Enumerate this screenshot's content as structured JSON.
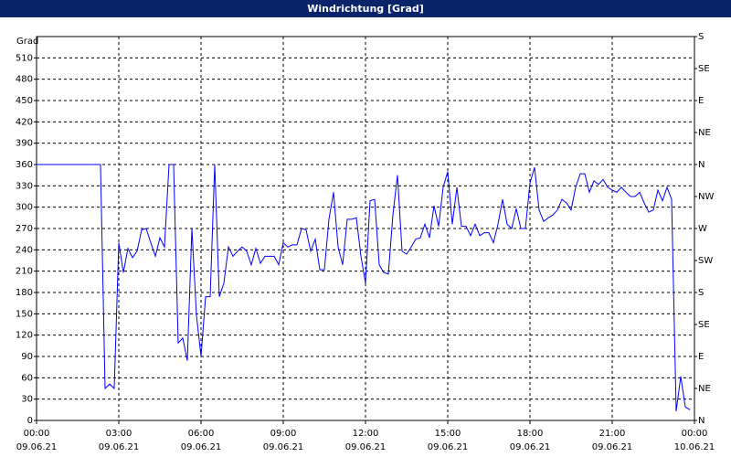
{
  "chart_data": {
    "type": "line",
    "title": "Windrichtung [Grad]",
    "y_label": "Grad",
    "color": "#0000ff",
    "grid": true,
    "xlim": [
      0,
      1440
    ],
    "xticks": [
      {
        "value": 0,
        "label": "00:00"
      },
      {
        "value": 180,
        "label": "03:00"
      },
      {
        "value": 360,
        "label": "06:00"
      },
      {
        "value": 540,
        "label": "09:00"
      },
      {
        "value": 720,
        "label": "12:00"
      },
      {
        "value": 900,
        "label": "15:00"
      },
      {
        "value": 1080,
        "label": "18:00"
      },
      {
        "value": 1260,
        "label": "21:00"
      },
      {
        "value": 1440,
        "label": "00:00"
      }
    ],
    "xtick_dates": [
      "09.06.21",
      "09.06.21",
      "09.06.21",
      "09.06.21",
      "09.06.21",
      "09.06.21",
      "09.06.21",
      "09.06.21",
      "10.06.21"
    ],
    "ylim": [
      0,
      540
    ],
    "yticks": [
      0,
      30,
      60,
      90,
      120,
      150,
      180,
      210,
      240,
      270,
      300,
      330,
      360,
      390,
      420,
      450,
      480,
      510
    ],
    "y2lim": [
      0,
      540
    ],
    "y2ticks": [
      {
        "value": 0,
        "label": "N"
      },
      {
        "value": 45,
        "label": "NE"
      },
      {
        "value": 90,
        "label": "E"
      },
      {
        "value": 135,
        "label": "SE"
      },
      {
        "value": 180,
        "label": "S"
      },
      {
        "value": 225,
        "label": "SW"
      },
      {
        "value": 270,
        "label": "W"
      },
      {
        "value": 315,
        "label": "NW"
      },
      {
        "value": 360,
        "label": "N"
      },
      {
        "value": 405,
        "label": "NE"
      },
      {
        "value": 450,
        "label": "E"
      },
      {
        "value": 495,
        "label": "SE"
      },
      {
        "value": 540,
        "label": "S"
      }
    ],
    "x": [
      0,
      140,
      150,
      160,
      170,
      180,
      190,
      200,
      210,
      220,
      230,
      240,
      250,
      260,
      270,
      280,
      290,
      300,
      310,
      320,
      330,
      340,
      350,
      360,
      370,
      380,
      390,
      400,
      410,
      420,
      430,
      440,
      450,
      460,
      470,
      480,
      490,
      500,
      510,
      520,
      530,
      540,
      550,
      560,
      570,
      580,
      590,
      600,
      610,
      620,
      630,
      640,
      650,
      660,
      670,
      680,
      690,
      700,
      710,
      720,
      730,
      740,
      750,
      760,
      770,
      780,
      790,
      800,
      810,
      820,
      830,
      840,
      850,
      860,
      870,
      880,
      890,
      900,
      910,
      920,
      930,
      940,
      950,
      960,
      970,
      980,
      990,
      1000,
      1010,
      1020,
      1030,
      1040,
      1050,
      1060,
      1070,
      1080,
      1090,
      1100,
      1110,
      1120,
      1130,
      1140,
      1150,
      1160,
      1170,
      1180,
      1190,
      1200,
      1210,
      1220,
      1230,
      1240,
      1250,
      1260,
      1270,
      1280,
      1290,
      1300,
      1310,
      1320,
      1330,
      1340,
      1350,
      1360,
      1370,
      1380,
      1390,
      1400,
      1410,
      1420,
      1430
    ],
    "values": [
      360,
      360,
      45,
      51,
      45,
      250,
      208,
      242,
      229,
      238,
      268,
      270,
      250,
      231,
      257,
      244,
      360,
      360,
      109,
      116,
      84,
      270,
      148,
      90,
      174,
      174,
      360,
      174,
      193,
      244,
      231,
      238,
      244,
      238,
      219,
      242,
      221,
      231,
      231,
      231,
      219,
      250,
      244,
      247,
      247,
      270,
      268,
      238,
      255,
      212,
      212,
      283,
      321,
      244,
      219,
      283,
      283,
      285,
      231,
      193,
      309,
      311,
      219,
      208,
      206,
      289,
      345,
      238,
      234,
      244,
      255,
      257,
      276,
      257,
      302,
      273,
      328,
      350,
      276,
      328,
      273,
      273,
      260,
      276,
      260,
      264,
      264,
      250,
      276,
      311,
      276,
      270,
      298,
      270,
      270,
      334,
      356,
      296,
      280,
      285,
      289,
      296,
      311,
      306,
      296,
      328,
      347,
      347,
      321,
      337,
      332,
      339,
      328,
      324,
      321,
      328,
      321,
      315,
      315,
      321,
      306,
      293,
      296,
      324,
      309,
      328,
      311,
      13,
      62,
      19,
      15
    ]
  }
}
